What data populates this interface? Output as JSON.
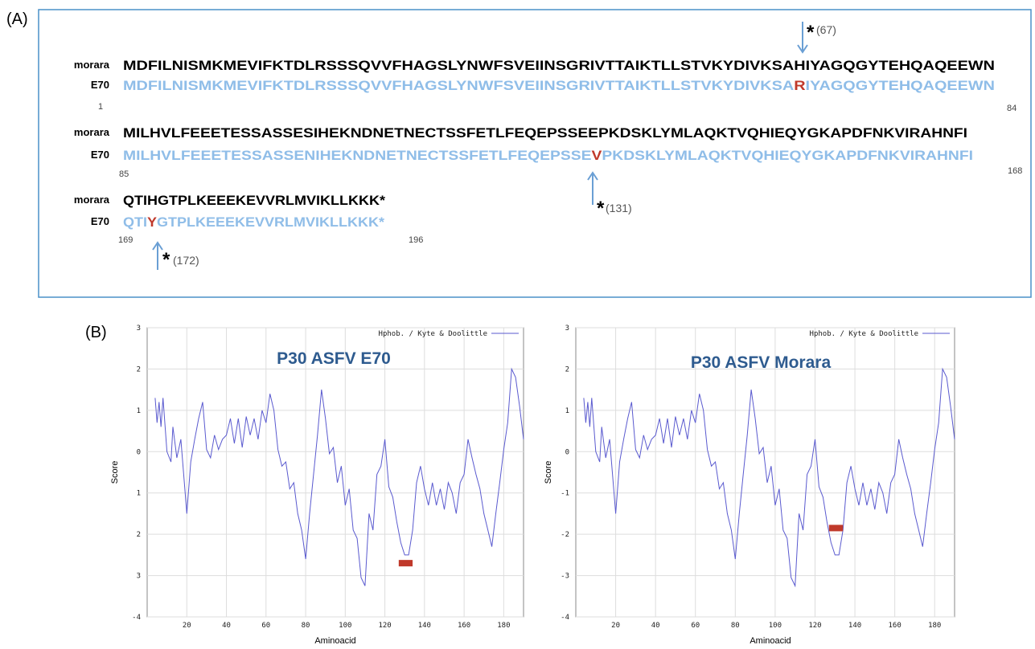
{
  "sequence_panel": {
    "label": "(A)",
    "rows": [
      {
        "morara_label": "morara",
        "morara": "MDFILNISMKMEVIFKTDLRSSSQVVFHAGSLYNWFSVEIINSGRIVTTAIKTLLSTVKYDIVKSAHIYAGQGYTEHQAQEEWN",
        "e70_label": "E70",
        "e70": [
          "MDFILNISMKMEVIFKTDLRSSSQVVFHAGSLYNWFSVEIINSGRIVTTAIKTLLSTVKYDIVKSA",
          "R",
          "IYAGQGYTEHQAQEEWN"
        ],
        "start": 1,
        "end": 84
      },
      {
        "morara_label": "morara",
        "morara": "MILHVLFEEETESSASSESIHEKNDNETNECTSSFETLFEQEPSSEEPKDSKLYMLAQKTVQHIEQYGKAPDFNKVIRAHNFI",
        "e70_label": "E70",
        "e70": [
          "MILHVLFEEETESSASSENIHEKNDNETNECTSSFETLFEQEPSSE",
          "V",
          "PKDSKLYMLAQKTVQHIEQYGKAPDFNKVIRAHNFI"
        ],
        "start": 85,
        "end": 168
      },
      {
        "morara_label": "morara",
        "morara": "QTIHGTPLKEEEKEVVRLMVIKLLKKK*",
        "e70_label": "E70",
        "e70": [
          "QTI",
          "Y",
          "GTPLKEEEKEVVRLMVIKLLKKK*"
        ],
        "start": 169,
        "end": 196
      }
    ],
    "annotations": [
      {
        "star": "*",
        "label": "(67)"
      },
      {
        "star": "*",
        "label": "(131)"
      },
      {
        "star": "*",
        "label": "(172)"
      }
    ]
  },
  "panel_b_label": "(B)",
  "chart_data": [
    {
      "type": "line",
      "title": "P30 ASFV E70",
      "xlabel": "Aminoacid",
      "ylabel": "Score",
      "xlim": [
        0,
        190
      ],
      "ylim": [
        -4,
        3
      ],
      "xticks": [
        20,
        40,
        60,
        80,
        100,
        120,
        140,
        160,
        180
      ],
      "yticks": [
        3,
        2,
        1,
        0,
        {
          "value": -1,
          "label": "1"
        },
        {
          "value": -2,
          "label": "2"
        },
        {
          "value": -3,
          "label": "3"
        },
        -4
      ],
      "grid": true,
      "x": [
        4,
        5,
        6,
        7,
        8,
        10,
        12,
        13,
        15,
        17,
        20,
        22,
        24,
        26,
        28,
        30,
        32,
        34,
        36,
        38,
        40,
        42,
        44,
        46,
        48,
        50,
        52,
        54,
        56,
        58,
        60,
        62,
        64,
        66,
        68,
        70,
        72,
        74,
        76,
        78,
        80,
        82,
        84,
        86,
        88,
        90,
        92,
        94,
        96,
        98,
        100,
        102,
        104,
        106,
        108,
        110,
        112,
        114,
        116,
        118,
        120,
        122,
        124,
        126,
        128,
        130,
        132,
        134,
        136,
        138,
        140,
        142,
        144,
        146,
        148,
        150,
        152,
        154,
        156,
        158,
        160,
        162,
        164,
        166,
        168,
        170,
        172,
        174,
        176,
        178,
        180,
        182,
        184,
        186,
        188,
        190
      ],
      "series": [
        {
          "name": "Hphob. / Kyte & Doolittle",
          "color": "#5a5acf",
          "values": [
            1.3,
            0.7,
            1.2,
            0.6,
            1.3,
            0.0,
            -0.25,
            0.6,
            -0.15,
            0.3,
            -1.5,
            -0.25,
            0.3,
            0.8,
            1.2,
            0.05,
            -0.15,
            0.4,
            0.05,
            0.3,
            0.4,
            0.8,
            0.2,
            0.8,
            0.1,
            0.85,
            0.4,
            0.8,
            0.3,
            1.0,
            0.7,
            1.4,
            1.0,
            0.05,
            -0.35,
            -0.25,
            -0.9,
            -0.75,
            -1.5,
            -1.9,
            -2.6,
            -1.5,
            -0.55,
            0.4,
            1.5,
            0.8,
            -0.05,
            0.1,
            -0.75,
            -0.35,
            -1.3,
            -0.9,
            -1.9,
            -2.1,
            -3.05,
            -3.25,
            -1.5,
            -1.9,
            -0.55,
            -0.35,
            0.3,
            -0.85,
            -1.1,
            -1.7,
            -2.2,
            -2.5,
            -2.5,
            -1.9,
            -0.75,
            -0.35,
            -0.9,
            -1.3,
            -0.75,
            -1.3,
            -0.9,
            -1.4,
            -0.75,
            -1.0,
            -1.5,
            -0.75,
            -0.55,
            0.3,
            -0.15,
            -0.55,
            -0.9,
            -1.5,
            -1.9,
            -2.3,
            -1.5,
            -0.75,
            0.05,
            0.7,
            2.0,
            1.8,
            1.1,
            0.3
          ]
        }
      ],
      "highlight": {
        "x": [
          127,
          134
        ],
        "y": -2.7,
        "color": "#c0392b"
      }
    },
    {
      "type": "line",
      "title": "P30 ASFV Morara",
      "xlabel": "Aminoacid",
      "ylabel": "Score",
      "xlim": [
        0,
        190
      ],
      "ylim": [
        -4,
        3
      ],
      "xticks": [
        20,
        40,
        60,
        80,
        100,
        120,
        140,
        160,
        180
      ],
      "yticks": [
        3,
        2,
        1,
        0,
        -1,
        -2,
        -3,
        -4
      ],
      "grid": true,
      "x": [
        4,
        5,
        6,
        7,
        8,
        10,
        12,
        13,
        15,
        17,
        20,
        22,
        24,
        26,
        28,
        30,
        32,
        34,
        36,
        38,
        40,
        42,
        44,
        46,
        48,
        50,
        52,
        54,
        56,
        58,
        60,
        62,
        64,
        66,
        68,
        70,
        72,
        74,
        76,
        78,
        80,
        82,
        84,
        86,
        88,
        90,
        92,
        94,
        96,
        98,
        100,
        102,
        104,
        106,
        108,
        110,
        112,
        114,
        116,
        118,
        120,
        122,
        124,
        126,
        128,
        130,
        132,
        134,
        136,
        138,
        140,
        142,
        144,
        146,
        148,
        150,
        152,
        154,
        156,
        158,
        160,
        162,
        164,
        166,
        168,
        170,
        172,
        174,
        176,
        178,
        180,
        182,
        184,
        186,
        188,
        190
      ],
      "series": [
        {
          "name": "Hphob. / Kyte & Doolittle",
          "color": "#5a5acf",
          "values": [
            1.3,
            0.7,
            1.2,
            0.6,
            1.3,
            0.0,
            -0.25,
            0.6,
            -0.15,
            0.3,
            -1.5,
            -0.25,
            0.3,
            0.8,
            1.2,
            0.05,
            -0.15,
            0.4,
            0.05,
            0.3,
            0.4,
            0.8,
            0.2,
            0.8,
            0.1,
            0.85,
            0.4,
            0.8,
            0.3,
            1.0,
            0.7,
            1.4,
            1.0,
            0.05,
            -0.35,
            -0.25,
            -0.9,
            -0.75,
            -1.5,
            -1.9,
            -2.6,
            -1.5,
            -0.55,
            0.4,
            1.5,
            0.8,
            -0.05,
            0.1,
            -0.75,
            -0.35,
            -1.3,
            -0.9,
            -1.9,
            -2.1,
            -3.05,
            -3.25,
            -1.5,
            -1.9,
            -0.55,
            -0.35,
            0.3,
            -0.85,
            -1.1,
            -1.7,
            -2.2,
            -2.5,
            -2.5,
            -1.9,
            -0.75,
            -0.35,
            -0.9,
            -1.3,
            -0.75,
            -1.3,
            -0.9,
            -1.4,
            -0.75,
            -1.0,
            -1.5,
            -0.75,
            -0.55,
            0.3,
            -0.15,
            -0.55,
            -0.9,
            -1.5,
            -1.9,
            -2.3,
            -1.5,
            -0.75,
            0.05,
            0.7,
            2.0,
            1.8,
            1.1,
            0.3
          ]
        }
      ],
      "highlight": {
        "x": [
          127,
          134
        ],
        "y": -1.85,
        "color": "#c0392b"
      }
    }
  ]
}
